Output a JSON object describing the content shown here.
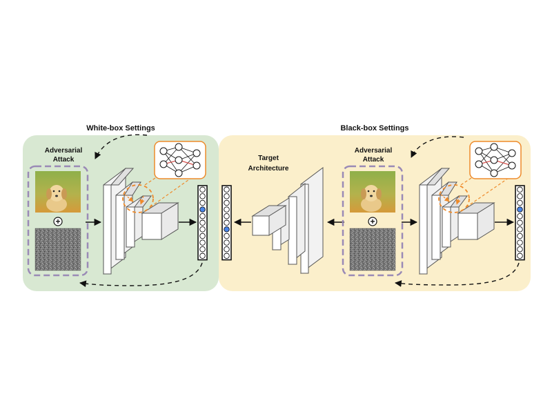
{
  "white_box": {
    "title": "White-box Settings",
    "attack_label_line1": "Adversarial",
    "attack_label_line2": "Attack",
    "plus_symbol": "+"
  },
  "black_box": {
    "title": "Black-box Settings",
    "attack_label_line1": "Adversarial",
    "attack_label_line2": "Attack",
    "target_label_line1": "Target",
    "target_label_line2": "Architecture",
    "plus_symbol": "+"
  },
  "colors": {
    "white_box_bg": "#d8e8d2",
    "black_box_bg": "#fbefcb",
    "dashed_box": "#9a8ab6",
    "highlight_orange": "#ee8a2a",
    "highlight_neuron": "#4a86e8",
    "network_edge_red": "#d9534f"
  },
  "output_vector": {
    "cells": 11,
    "highlight_index_white": 3,
    "highlight_index_black": 3,
    "highlight_index_target": 6
  }
}
